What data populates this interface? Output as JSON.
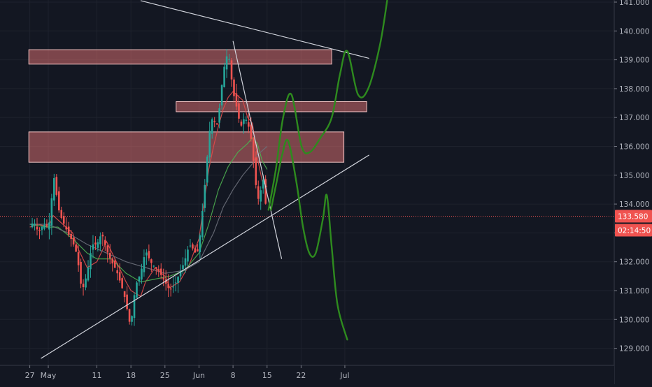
{
  "chart_data": {
    "type": "candlestick",
    "instrument_scale": "price",
    "price_axis": {
      "range": [
        128.65,
        141.05
      ],
      "ticks": [
        "141.000",
        "140.000",
        "139.000",
        "138.000",
        "137.000",
        "136.000",
        "135.000",
        "134.000",
        "133.000",
        "132.000",
        "131.000",
        "130.000",
        "129.000"
      ],
      "tick_values": [
        141,
        140,
        139,
        138,
        137,
        136,
        135,
        134,
        133,
        132,
        131,
        130,
        129
      ]
    },
    "time_axis": {
      "ticks": [
        {
          "label": "27",
          "day": -3.8
        },
        {
          "label": "May",
          "day": 0
        },
        {
          "label": "11",
          "day": 10
        },
        {
          "label": "18",
          "day": 17
        },
        {
          "label": "25",
          "day": 24
        },
        {
          "label": "Jun",
          "day": 31
        },
        {
          "label": "8",
          "day": 38
        },
        {
          "label": "15",
          "day": 45
        },
        {
          "label": "22",
          "day": 52
        },
        {
          "label": "Jul",
          "day": 61
        }
      ]
    },
    "last_price": {
      "value": 133.58,
      "label": "133.580",
      "countdown": "02:14:50",
      "color": "#f05350"
    },
    "zones": [
      {
        "name": "resistance-zone-upper",
        "price_top": 139.35,
        "price_bottom": 138.85,
        "day_start": -4,
        "day_end": 58.3
      },
      {
        "name": "resistance-zone-middle",
        "price_top": 137.55,
        "price_bottom": 137.2,
        "day_start": 26.3,
        "day_end": 65.5
      },
      {
        "name": "resistance-zone-lower",
        "price_top": 136.5,
        "price_bottom": 135.45,
        "day_start": -4,
        "day_end": 60.8
      }
    ],
    "trendlines": [
      {
        "name": "descending-resistance-line",
        "from": {
          "day": 19.0,
          "price": 141.05
        },
        "to": {
          "day": 66.0,
          "price": 139.05
        }
      },
      {
        "name": "ascending-support-line",
        "from": {
          "day": -1.5,
          "price": 128.65
        },
        "to": {
          "day": 66.0,
          "price": 135.7
        }
      },
      {
        "name": "steep-downtrend-line",
        "from": {
          "day": 38.0,
          "price": 139.65
        },
        "to": {
          "day": 48.0,
          "price": 132.1
        }
      }
    ],
    "projections": [
      {
        "name": "bullish-projection-path",
        "points": [
          [
            45.3,
            133.8
          ],
          [
            46.8,
            135.2
          ],
          [
            48.3,
            137.0
          ],
          [
            50.0,
            137.8
          ],
          [
            52.1,
            136.0
          ],
          [
            53.8,
            135.8
          ],
          [
            56.0,
            136.3
          ],
          [
            58.3,
            137.0
          ],
          [
            60.0,
            138.5
          ],
          [
            61.5,
            139.3
          ],
          [
            63.7,
            137.8
          ],
          [
            65.8,
            138.0
          ],
          [
            68.2,
            139.5
          ],
          [
            69.7,
            141.05
          ]
        ]
      },
      {
        "name": "bearish-projection-path",
        "points": [
          [
            45.8,
            133.8
          ],
          [
            47.0,
            134.8
          ],
          [
            48.1,
            135.7
          ],
          [
            49.3,
            136.2
          ],
          [
            51.0,
            134.8
          ],
          [
            52.4,
            133.2
          ],
          [
            53.7,
            132.3
          ],
          [
            55.0,
            132.3
          ],
          [
            56.5,
            133.5
          ],
          [
            57.3,
            134.3
          ],
          [
            58.3,
            132.5
          ],
          [
            59.5,
            130.5
          ],
          [
            61.5,
            129.3
          ]
        ]
      }
    ],
    "series": [
      {
        "name": "",
        "role": "moving-average-fast",
        "color": "#e04a4a",
        "points": [
          [
            -3.8,
            133.2
          ],
          [
            -2,
            133.3
          ],
          [
            0,
            133.2
          ],
          [
            1,
            133.6
          ],
          [
            3,
            133.3
          ],
          [
            5,
            133.0
          ],
          [
            6,
            132.5
          ],
          [
            8,
            131.8
          ],
          [
            10,
            132.0
          ],
          [
            12,
            132.7
          ],
          [
            14,
            132.0
          ],
          [
            16,
            131.3
          ],
          [
            17,
            131.0
          ],
          [
            19,
            130.8
          ],
          [
            20,
            131.3
          ],
          [
            22,
            131.8
          ],
          [
            24,
            131.5
          ],
          [
            25,
            131.1
          ],
          [
            27,
            131.3
          ],
          [
            29,
            131.9
          ],
          [
            31,
            132.8
          ],
          [
            32,
            134.0
          ],
          [
            33,
            135.2
          ],
          [
            34,
            136.0
          ],
          [
            35,
            136.7
          ],
          [
            36,
            137.3
          ],
          [
            37,
            137.7
          ],
          [
            38,
            137.9
          ],
          [
            40,
            137.6
          ],
          [
            41,
            137.0
          ],
          [
            42,
            136.8
          ],
          [
            43,
            135.6
          ],
          [
            44,
            134.8
          ],
          [
            45,
            134.6
          ]
        ]
      },
      {
        "name": "",
        "role": "moving-average-mid",
        "color": "#4caf50",
        "points": [
          [
            -3.8,
            133.3
          ],
          [
            0,
            133.2
          ],
          [
            2,
            133.2
          ],
          [
            5,
            132.8
          ],
          [
            8,
            132.3
          ],
          [
            10,
            132.1
          ],
          [
            13,
            132.1
          ],
          [
            16,
            131.6
          ],
          [
            19,
            131.3
          ],
          [
            22,
            131.4
          ],
          [
            25,
            131.5
          ],
          [
            28,
            131.7
          ],
          [
            31,
            132.3
          ],
          [
            33,
            133.3
          ],
          [
            35,
            134.5
          ],
          [
            37,
            135.3
          ],
          [
            39,
            135.8
          ],
          [
            41,
            136.1
          ],
          [
            42,
            136.3
          ],
          [
            43,
            136.1
          ],
          [
            44,
            135.5
          ],
          [
            45,
            135.2
          ]
        ]
      },
      {
        "name": "",
        "role": "moving-average-slow",
        "color": "#6b6f7a",
        "points": [
          [
            -3.8,
            133.3
          ],
          [
            0,
            133.3
          ],
          [
            4,
            133.0
          ],
          [
            8,
            132.6
          ],
          [
            12,
            132.3
          ],
          [
            16,
            132.0
          ],
          [
            20,
            131.8
          ],
          [
            24,
            131.6
          ],
          [
            28,
            131.7
          ],
          [
            31,
            132.0
          ],
          [
            34,
            133.0
          ],
          [
            36,
            133.9
          ],
          [
            38,
            134.5
          ],
          [
            40,
            135.0
          ],
          [
            42,
            135.4
          ],
          [
            43,
            135.7
          ],
          [
            45,
            136.0
          ]
        ]
      }
    ],
    "candle_path": [
      [
        -3.8,
        133.2
      ],
      [
        -3,
        133.4
      ],
      [
        -2,
        133.0
      ],
      [
        -1,
        133.3
      ],
      [
        0,
        133.2
      ],
      [
        0.5,
        133.6
      ],
      [
        1,
        135.1
      ],
      [
        1.5,
        134.6
      ],
      [
        2,
        133.9
      ],
      [
        2.5,
        133.6
      ],
      [
        3,
        133.4
      ],
      [
        4,
        133.0
      ],
      [
        5,
        132.7
      ],
      [
        6,
        132.2
      ],
      [
        6.5,
        131.4
      ],
      [
        7,
        131.0
      ],
      [
        8,
        131.6
      ],
      [
        9,
        132.6
      ],
      [
        10,
        132.6
      ],
      [
        11,
        133.0
      ],
      [
        12,
        132.4
      ],
      [
        13,
        132.0
      ],
      [
        14,
        131.7
      ],
      [
        15,
        131.2
      ],
      [
        16,
        130.6
      ],
      [
        16.5,
        130.0
      ],
      [
        17,
        129.8
      ],
      [
        17.5,
        130.6
      ],
      [
        18,
        131.2
      ],
      [
        19,
        131.6
      ],
      [
        20,
        132.4
      ],
      [
        21,
        132.0
      ],
      [
        22,
        131.8
      ],
      [
        23,
        131.6
      ],
      [
        24,
        131.3
      ],
      [
        25,
        131.0
      ],
      [
        26,
        131.2
      ],
      [
        27,
        131.6
      ],
      [
        28,
        132.0
      ],
      [
        29,
        132.6
      ],
      [
        30,
        132.4
      ],
      [
        30.5,
        132.2
      ],
      [
        31,
        132.6
      ],
      [
        31.5,
        133.4
      ],
      [
        32,
        134.3
      ],
      [
        32.5,
        135.2
      ],
      [
        33,
        136.3
      ],
      [
        33.5,
        136.9
      ],
      [
        34,
        137.0
      ],
      [
        34.5,
        136.6
      ],
      [
        35,
        137.0
      ],
      [
        35.5,
        137.8
      ],
      [
        36,
        138.6
      ],
      [
        36.5,
        139.0
      ],
      [
        37,
        139.3
      ],
      [
        37.5,
        138.6
      ],
      [
        38,
        137.9
      ],
      [
        38.5,
        137.5
      ],
      [
        39,
        137.2
      ],
      [
        39.5,
        136.6
      ],
      [
        40,
        136.9
      ],
      [
        40.5,
        137.0
      ],
      [
        41,
        136.8
      ],
      [
        41.5,
        136.5
      ],
      [
        42,
        135.9
      ],
      [
        42.5,
        134.9
      ],
      [
        43,
        134.3
      ],
      [
        43.5,
        134.0
      ],
      [
        44,
        135.2
      ],
      [
        44.5,
        134.3
      ],
      [
        45,
        133.58
      ]
    ]
  }
}
